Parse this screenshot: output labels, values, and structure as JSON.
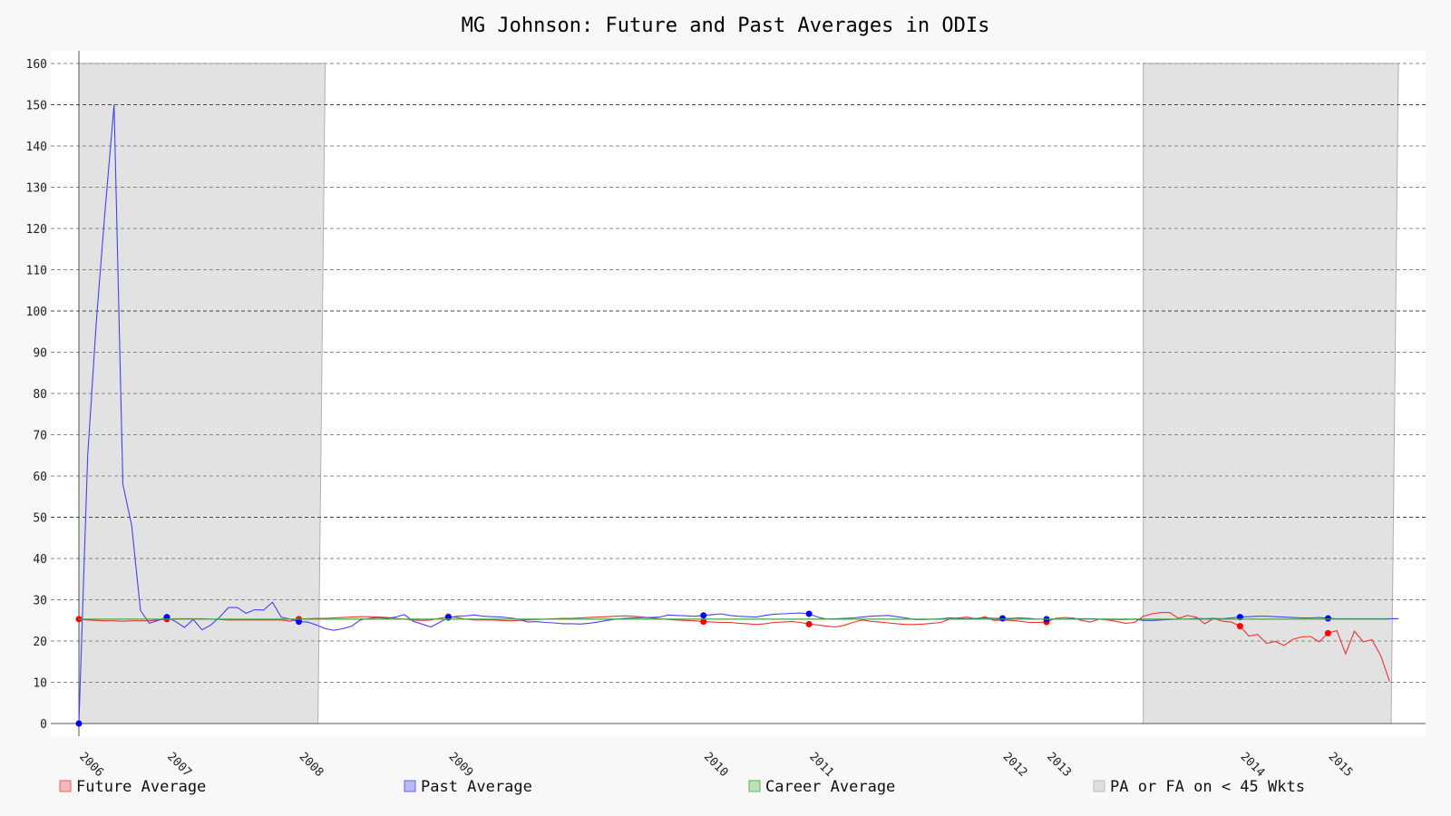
{
  "chart_data": {
    "type": "line",
    "title": "MG Johnson: Future and Past Averages in ODIs",
    "xlabel": "",
    "ylabel": "",
    "ylim": [
      0,
      160
    ],
    "yticks": [
      0,
      10,
      20,
      30,
      40,
      50,
      60,
      70,
      80,
      90,
      100,
      110,
      120,
      130,
      140,
      150,
      160
    ],
    "grid": true,
    "legend_position": "bottom",
    "x_ticks": [
      {
        "label": "2006",
        "x": 0
      },
      {
        "label": "2007",
        "x": 10
      },
      {
        "label": "2008",
        "x": 25
      },
      {
        "label": "2009",
        "x": 42
      },
      {
        "label": "2010",
        "x": 71
      },
      {
        "label": "2011",
        "x": 83
      },
      {
        "label": "2012",
        "x": 105
      },
      {
        "label": "2013",
        "x": 110
      },
      {
        "label": "2014",
        "x": 132
      },
      {
        "label": "2015",
        "x": 142
      }
    ],
    "x_range": [
      0,
      150
    ],
    "shaded_regions": [
      {
        "x0": 0,
        "x1": 28
      },
      {
        "x0": 121,
        "x1": 150
      }
    ],
    "series": [
      {
        "name": "Future Average",
        "color": "#ee3333",
        "markers": [
          0,
          10,
          25,
          42,
          71,
          83,
          110,
          132,
          142
        ],
        "values": [
          25.3,
          25.1,
          25.0,
          24.9,
          24.9,
          24.8,
          24.9,
          24.9,
          24.9,
          25.1,
          25.3,
          25.4,
          25.4,
          25.4,
          25.4,
          25.3,
          25.2,
          25.1,
          25.1,
          25.1,
          25.1,
          25.1,
          25.1,
          25.1,
          24.8,
          25.3,
          25.4,
          25.5,
          25.5,
          25.6,
          25.7,
          25.8,
          25.9,
          25.9,
          25.8,
          25.7,
          25.5,
          25.3,
          25.1,
          25.0,
          25.1,
          25.5,
          25.9,
          25.7,
          25.3,
          25.1,
          25.1,
          25.1,
          25.0,
          24.9,
          25.0,
          25.1,
          25.2,
          25.3,
          25.4,
          25.5,
          25.5,
          25.6,
          25.7,
          25.8,
          25.9,
          26.0,
          26.1,
          26.0,
          25.8,
          25.6,
          25.4,
          25.2,
          25.1,
          25.0,
          24.9,
          24.7,
          24.6,
          24.5,
          24.5,
          24.3,
          24.2,
          24.0,
          24.2,
          24.5,
          24.6,
          24.7,
          24.5,
          24.1,
          23.9,
          23.6,
          23.4,
          23.8,
          24.5,
          25.1,
          24.8,
          24.6,
          24.4,
          24.2,
          24.0,
          24.0,
          24.1,
          24.3,
          24.5,
          25.3,
          25.6,
          25.8,
          25.3,
          25.9,
          25.0,
          25.1,
          25.0,
          24.8,
          24.5,
          24.5,
          24.6,
          25.5,
          25.7,
          25.6,
          25.0,
          24.6,
          25.3,
          25.1,
          24.7,
          24.3,
          24.5,
          26.0,
          26.6,
          26.9,
          26.9,
          25.5,
          26.2,
          25.8,
          24.2,
          25.5,
          24.8,
          24.6,
          23.6,
          21.2,
          21.6,
          19.4,
          19.9,
          18.9,
          20.4,
          21.0,
          21.1,
          19.8,
          21.9,
          22.5,
          16.9,
          22.4,
          19.8,
          20.3,
          16.4,
          10.2
        ]
      },
      {
        "name": "Past Average",
        "color": "#4444ee",
        "markers": [
          0,
          10,
          25,
          42,
          71,
          83,
          105,
          110,
          132,
          142
        ],
        "values": [
          0,
          65,
          98,
          125,
          150,
          58,
          48,
          27.4,
          24.3,
          25.0,
          25.8,
          24.7,
          23.3,
          25.2,
          22.7,
          23.9,
          25.8,
          28.1,
          28.1,
          26.7,
          27.6,
          27.5,
          29.4,
          25.8,
          25.3,
          24.7,
          24.6,
          23.9,
          23.0,
          22.6,
          23.0,
          23.6,
          25.1,
          25.5,
          25.7,
          25.5,
          25.8,
          26.4,
          24.8,
          24.1,
          23.4,
          24.5,
          25.7,
          26.0,
          26.1,
          26.3,
          26.0,
          25.9,
          25.8,
          25.6,
          25.3,
          24.6,
          24.7,
          24.5,
          24.4,
          24.2,
          24.2,
          24.1,
          24.3,
          24.6,
          25.0,
          25.3,
          25.5,
          25.6,
          25.7,
          25.7,
          25.8,
          26.3,
          26.2,
          26.1,
          26.0,
          26.2,
          26.4,
          26.6,
          26.2,
          26.0,
          25.9,
          25.8,
          26.2,
          26.5,
          26.6,
          26.7,
          26.8,
          26.6,
          25.8,
          25.3,
          25.4,
          25.5,
          25.6,
          25.8,
          26.0,
          26.1,
          26.2,
          25.9,
          25.6,
          25.2,
          25.2,
          25.3,
          25.4,
          25.6,
          25.5,
          25.4,
          25.5,
          25.6,
          25.5,
          25.5,
          25.5,
          25.6,
          25.5,
          25.3,
          25.3,
          25.3,
          25.3,
          25.4,
          25.4,
          25.4,
          25.3,
          25.2,
          25.2,
          25.2,
          25.3,
          25.0,
          25.0,
          25.1,
          25.2,
          25.3,
          25.3,
          25.5,
          25.4,
          25.5,
          25.4,
          25.6,
          25.8,
          25.9,
          26.0,
          26.0,
          25.9,
          25.8,
          25.7,
          25.6,
          25.6,
          25.7,
          25.5,
          25.4,
          25.4,
          25.4,
          25.4,
          25.4,
          25.4,
          25.4,
          25.4
        ]
      },
      {
        "name": "Career Average",
        "color": "#44aa44",
        "markers": [],
        "constant": 25.3
      }
    ],
    "legend": [
      {
        "label": "Future Average",
        "fill": "#f4b8b8",
        "stroke": "#ee6666"
      },
      {
        "label": "Past Average",
        "fill": "#b8b8f4",
        "stroke": "#6666ee"
      },
      {
        "label": "Career Average",
        "fill": "#b8e4b8",
        "stroke": "#66aa66"
      },
      {
        "label": "PA or FA on < 45 Wkts",
        "fill": "#dedede",
        "stroke": "#bbbbbb"
      }
    ]
  }
}
